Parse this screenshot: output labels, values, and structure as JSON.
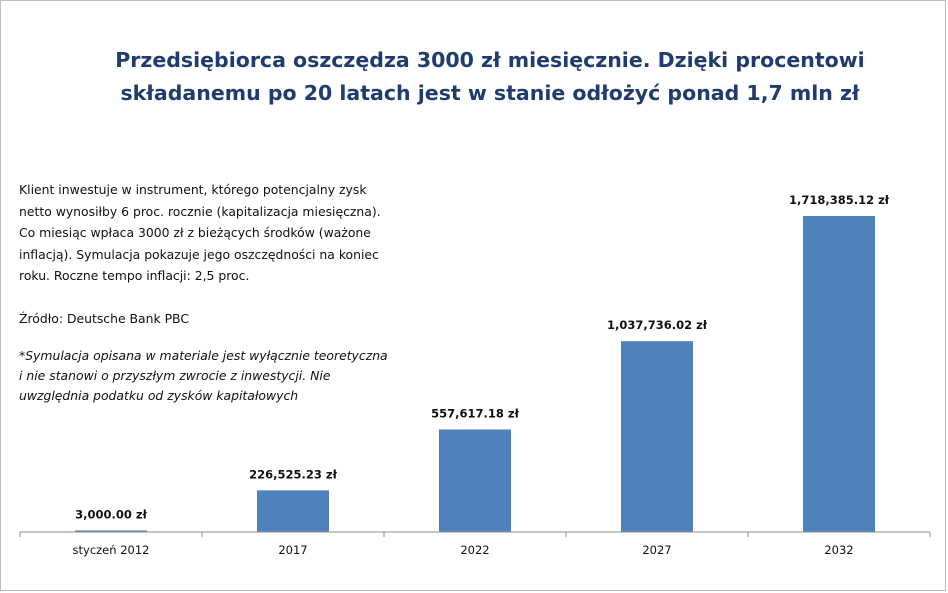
{
  "title": {
    "line1": "Przedsiębiorca oszczędza 3000 zł miesięcznie. Dzięki procentowi",
    "line2": "składanemu po 20 latach jest w stanie odłożyć ponad 1,7 mln zł"
  },
  "note": {
    "description": "Klient inwestuje w instrument, którego potencjalny zysk netto wynosiłby 6 proc. rocznie (kapitalizacja miesięczna). Co miesiąc wpłaca 3000 zł z bieżących środków (ważone inflacją). Symulacja pokazuje jego oszczędności na koniec roku. Roczne tempo inflacji: 2,5 proc.",
    "source": "Źródło: Deutsche Bank PBC",
    "disclaimer": "*Symulacja opisana w materiale jest wyłącznie teoretyczna i nie stanowi o przyszłym zwrocie z inwestycji. Nie uwzględnia podatku od zysków kapitałowych"
  },
  "colors": {
    "bar": "#4f81bd",
    "title": "#1f3c6e",
    "axis": "#8c8c8c"
  },
  "chart_data": {
    "type": "bar",
    "categories": [
      "styczeń 2012",
      "2017",
      "2022",
      "2027",
      "2032"
    ],
    "values": [
      3000.0,
      226525.23,
      557617.18,
      1037736.02,
      1718385.12
    ],
    "data_labels": [
      "3,000.00 zł",
      "226,525.23 zł",
      "557,617.18 zł",
      "1,037,736.02 zł",
      "1,718,385.12 zł"
    ],
    "grid": false,
    "legend": "none"
  }
}
